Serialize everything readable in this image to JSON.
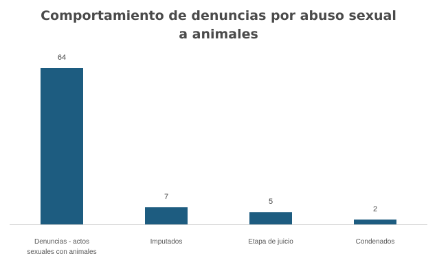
{
  "chart_data": {
    "type": "bar",
    "title_lines": [
      "Comportamiento de denuncias por abuso sexual",
      "a animales"
    ],
    "categories": [
      [
        "Denuncias - actos",
        "sexuales con animales"
      ],
      [
        "Imputados"
      ],
      [
        "Etapa de juicio"
      ],
      [
        "Condenados"
      ]
    ],
    "values": [
      64,
      7,
      5,
      2
    ],
    "data_labels": [
      "64",
      "7",
      "5",
      "2"
    ],
    "ylim": [
      0,
      64
    ],
    "grid": false,
    "legend": "none",
    "xlabel": "",
    "ylabel": "",
    "bar_color": "#1d5c80",
    "axis_color": "#d0d0d0"
  }
}
